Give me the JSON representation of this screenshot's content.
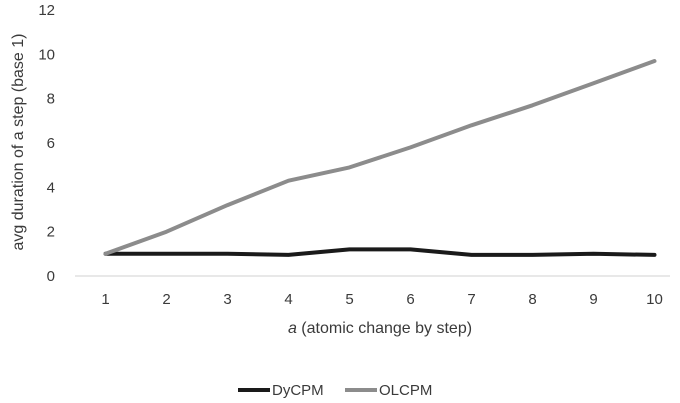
{
  "chart_data": {
    "type": "line",
    "x": [
      1,
      2,
      3,
      4,
      5,
      6,
      7,
      8,
      9,
      10
    ],
    "series": [
      {
        "name": "DyCPM",
        "values": [
          1.0,
          1.0,
          1.0,
          0.95,
          1.2,
          1.2,
          0.95,
          0.95,
          1.0,
          0.95
        ],
        "color": "#1a1a1a"
      },
      {
        "name": "OLCPM",
        "values": [
          1.0,
          2.0,
          3.2,
          4.3,
          4.9,
          5.8,
          6.8,
          7.7,
          8.7,
          9.7
        ],
        "color": "#8c8c8c"
      }
    ],
    "xlabel_var": "a",
    "xlabel_rest": " (atomic change by step)",
    "ylabel": "avg duration of a step (base 1)",
    "ylim": [
      0,
      12
    ],
    "yticks": [
      0,
      2,
      4,
      6,
      8,
      10,
      12
    ],
    "grid": false,
    "legend_position": "bottom-center"
  }
}
